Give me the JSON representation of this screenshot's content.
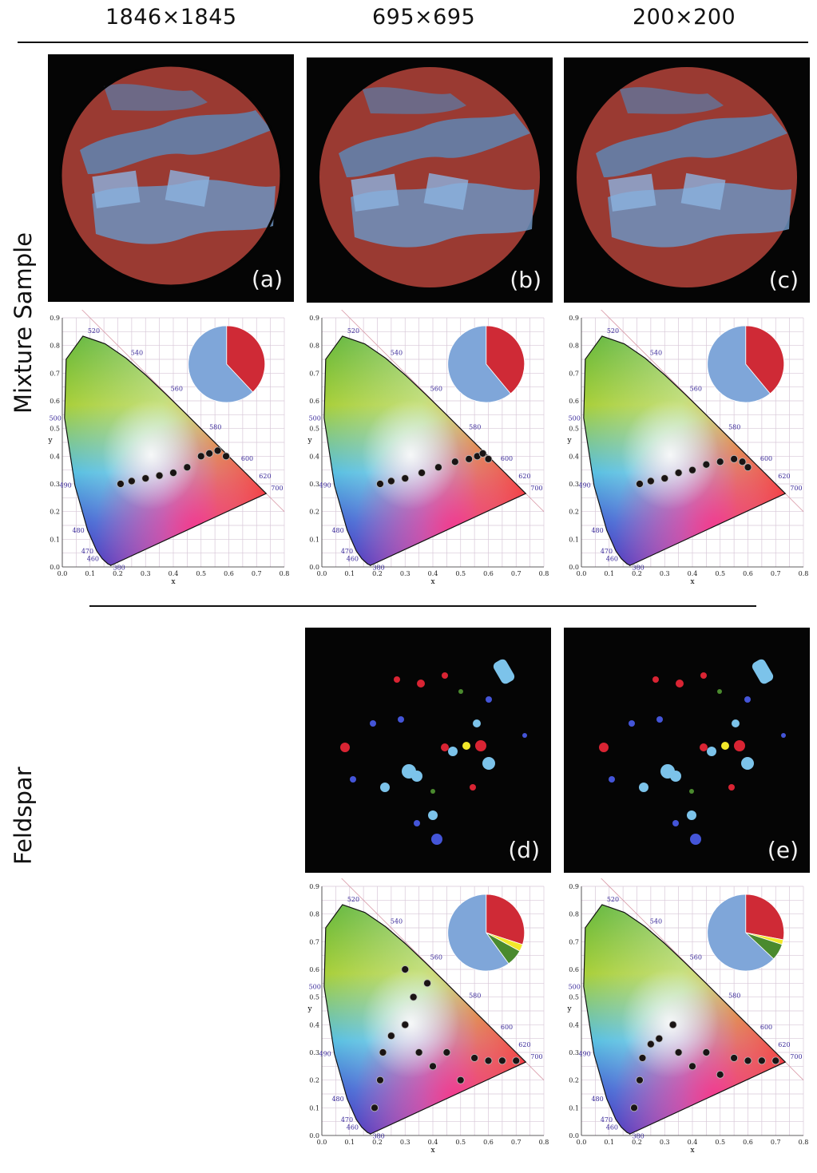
{
  "columns": [
    "1846×1845",
    "695×695",
    "200×200"
  ],
  "row_labels": [
    "Mixture Sample",
    "Feldspar"
  ],
  "panel_labels": [
    "(a)",
    "(b)",
    "(c)",
    "(d)",
    "(e)"
  ],
  "colors": {
    "mineral_blue": "#7fa6d9",
    "mineral_red": "#cf2a36",
    "mineral_yellow": "#f2e82a",
    "mineral_green": "#4a8a2e",
    "photo_bg": "#050505"
  },
  "chart_data": [
    {
      "type": "scatter",
      "panel": "(a)",
      "title": "",
      "xlabel": "x",
      "ylabel": "y",
      "xlim": [
        0,
        0.8
      ],
      "ylim": [
        0,
        0.9
      ],
      "grid": true,
      "wavelength_labels": [
        "380",
        "460",
        "470",
        "480",
        "490",
        "500",
        "520",
        "540",
        "560",
        "580",
        "600",
        "620",
        "700"
      ],
      "pie": {
        "slices": [
          {
            "name": "blue",
            "value": 62
          },
          {
            "name": "red",
            "value": 38
          }
        ]
      },
      "point_cluster": [
        [
          0.21,
          0.3
        ],
        [
          0.25,
          0.31
        ],
        [
          0.3,
          0.32
        ],
        [
          0.35,
          0.33
        ],
        [
          0.4,
          0.34
        ],
        [
          0.45,
          0.36
        ],
        [
          0.5,
          0.4
        ],
        [
          0.53,
          0.41
        ],
        [
          0.56,
          0.42
        ],
        [
          0.59,
          0.4
        ]
      ]
    },
    {
      "type": "scatter",
      "panel": "(b)",
      "title": "",
      "xlabel": "x",
      "ylabel": "y",
      "xlim": [
        0,
        0.8
      ],
      "ylim": [
        0,
        0.9
      ],
      "grid": true,
      "wavelength_labels": [
        "380",
        "460",
        "470",
        "480",
        "490",
        "500",
        "520",
        "540",
        "560",
        "580",
        "600",
        "620",
        "700"
      ],
      "pie": {
        "slices": [
          {
            "name": "blue",
            "value": 61
          },
          {
            "name": "red",
            "value": 39
          }
        ]
      },
      "point_cluster": [
        [
          0.21,
          0.3
        ],
        [
          0.25,
          0.31
        ],
        [
          0.3,
          0.32
        ],
        [
          0.36,
          0.34
        ],
        [
          0.42,
          0.36
        ],
        [
          0.48,
          0.38
        ],
        [
          0.53,
          0.39
        ],
        [
          0.56,
          0.4
        ],
        [
          0.58,
          0.41
        ],
        [
          0.6,
          0.39
        ]
      ]
    },
    {
      "type": "scatter",
      "panel": "(c)",
      "title": "",
      "xlabel": "x",
      "ylabel": "y",
      "xlim": [
        0,
        0.8
      ],
      "ylim": [
        0,
        0.9
      ],
      "grid": true,
      "wavelength_labels": [
        "380",
        "460",
        "470",
        "480",
        "490",
        "500",
        "520",
        "540",
        "560",
        "580",
        "600",
        "620",
        "700"
      ],
      "pie": {
        "slices": [
          {
            "name": "blue",
            "value": 61
          },
          {
            "name": "red",
            "value": 39
          }
        ]
      },
      "point_cluster": [
        [
          0.21,
          0.3
        ],
        [
          0.25,
          0.31
        ],
        [
          0.3,
          0.32
        ],
        [
          0.35,
          0.34
        ],
        [
          0.4,
          0.35
        ],
        [
          0.45,
          0.37
        ],
        [
          0.5,
          0.38
        ],
        [
          0.55,
          0.39
        ],
        [
          0.58,
          0.38
        ],
        [
          0.6,
          0.36
        ]
      ]
    },
    {
      "type": "scatter",
      "panel": "(d)",
      "title": "",
      "xlabel": "x",
      "ylabel": "y",
      "xlim": [
        0,
        0.8
      ],
      "ylim": [
        0,
        0.9
      ],
      "grid": true,
      "wavelength_labels": [
        "380",
        "460",
        "470",
        "480",
        "490",
        "500",
        "520",
        "540",
        "560",
        "580",
        "600",
        "620",
        "700"
      ],
      "pie": {
        "slices": [
          {
            "name": "blue",
            "value": 60
          },
          {
            "name": "red",
            "value": 30
          },
          {
            "name": "yellow",
            "value": 3
          },
          {
            "name": "green",
            "value": 7
          }
        ]
      },
      "point_cluster": [
        [
          0.19,
          0.1
        ],
        [
          0.21,
          0.2
        ],
        [
          0.22,
          0.3
        ],
        [
          0.25,
          0.36
        ],
        [
          0.3,
          0.4
        ],
        [
          0.35,
          0.3
        ],
        [
          0.4,
          0.25
        ],
        [
          0.45,
          0.3
        ],
        [
          0.5,
          0.2
        ],
        [
          0.55,
          0.28
        ],
        [
          0.6,
          0.27
        ],
        [
          0.65,
          0.27
        ],
        [
          0.7,
          0.27
        ],
        [
          0.33,
          0.5
        ],
        [
          0.38,
          0.55
        ],
        [
          0.3,
          0.6
        ]
      ]
    },
    {
      "type": "scatter",
      "panel": "(e)",
      "title": "",
      "xlabel": "x",
      "ylabel": "y",
      "xlim": [
        0,
        0.8
      ],
      "ylim": [
        0,
        0.9
      ],
      "grid": true,
      "wavelength_labels": [
        "380",
        "460",
        "470",
        "480",
        "490",
        "500",
        "520",
        "540",
        "560",
        "580",
        "600",
        "620",
        "700"
      ],
      "pie": {
        "slices": [
          {
            "name": "blue",
            "value": 63
          },
          {
            "name": "red",
            "value": 28
          },
          {
            "name": "yellow",
            "value": 2
          },
          {
            "name": "green",
            "value": 7
          }
        ]
      },
      "point_cluster": [
        [
          0.19,
          0.1
        ],
        [
          0.21,
          0.2
        ],
        [
          0.22,
          0.28
        ],
        [
          0.25,
          0.33
        ],
        [
          0.28,
          0.35
        ],
        [
          0.33,
          0.4
        ],
        [
          0.35,
          0.3
        ],
        [
          0.4,
          0.25
        ],
        [
          0.45,
          0.3
        ],
        [
          0.5,
          0.22
        ],
        [
          0.55,
          0.28
        ],
        [
          0.6,
          0.27
        ],
        [
          0.65,
          0.27
        ],
        [
          0.7,
          0.27
        ]
      ]
    }
  ]
}
